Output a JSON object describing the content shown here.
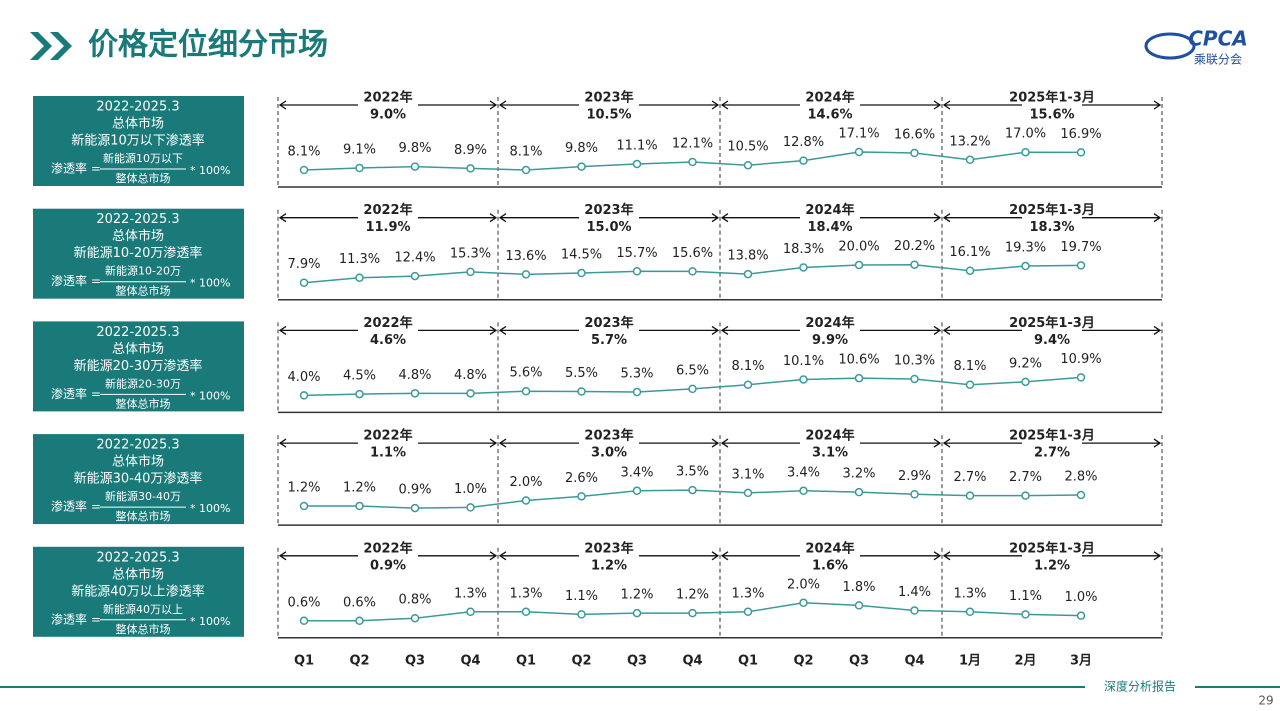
{
  "header": {
    "title": "价格定位细分市场",
    "logo": "CPCA",
    "logo_sub": "乘联分会"
  },
  "footer": {
    "report": "深度分析报告",
    "page": "29"
  },
  "chart_data": [
    {
      "type": "line",
      "period": "2022-2025.3",
      "market": "总体市场",
      "subtitle": "新能源10万以下渗透率",
      "formula": {
        "lhs": "渗透率 =",
        "numerator": "新能源10万以下",
        "denominator": "整体总市场",
        "factor": "* 100%"
      },
      "summaries": [
        {
          "label": "2022年",
          "text": "9.0%"
        },
        {
          "label": "2023年",
          "text": "10.5%"
        },
        {
          "label": "2024年",
          "text": "14.6%"
        },
        {
          "label": "2025年1-3月",
          "text": "15.6%"
        }
      ],
      "values": [
        8.1,
        9.1,
        9.8,
        8.9,
        8.1,
        9.8,
        11.1,
        12.1,
        10.5,
        12.8,
        17.1,
        16.6,
        13.2,
        17.0,
        16.9
      ],
      "value_labels": [
        "8.1%",
        "9.1%",
        "9.8%",
        "8.9%",
        "8.1%",
        "9.8%",
        "11.1%",
        "12.1%",
        "10.5%",
        "12.8%",
        "17.1%",
        "16.6%",
        "13.2%",
        "17.0%",
        "16.9%"
      ],
      "color": "#3a9a9a"
    },
    {
      "type": "line",
      "period": "2022-2025.3",
      "market": "总体市场",
      "subtitle": "新能源10-20万渗透率",
      "formula": {
        "lhs": "渗透率 =",
        "numerator": "新能源10-20万",
        "denominator": "整体总市场",
        "factor": "* 100%"
      },
      "summaries": [
        {
          "label": "2022年",
          "text": "11.9%"
        },
        {
          "label": "2023年",
          "text": "15.0%"
        },
        {
          "label": "2024年",
          "text": "18.4%"
        },
        {
          "label": "2025年1-3月",
          "text": "18.3%"
        }
      ],
      "values": [
        7.9,
        11.3,
        12.4,
        15.3,
        13.6,
        14.5,
        15.7,
        15.6,
        13.8,
        18.3,
        20.0,
        20.2,
        16.1,
        19.3,
        19.7
      ],
      "value_labels": [
        "7.9%",
        "11.3%",
        "12.4%",
        "15.3%",
        "13.6%",
        "14.5%",
        "15.7%",
        "15.6%",
        "13.8%",
        "18.3%",
        "20.0%",
        "20.2%",
        "16.1%",
        "19.3%",
        "19.7%"
      ],
      "color": "#3a9a9a"
    },
    {
      "type": "line",
      "period": "2022-2025.3",
      "market": "总体市场",
      "subtitle": "新能源20-30万渗透率",
      "formula": {
        "lhs": "渗透率 =",
        "numerator": "新能源20-30万",
        "denominator": "整体总市场",
        "factor": "* 100%"
      },
      "summaries": [
        {
          "label": "2022年",
          "text": "4.6%"
        },
        {
          "label": "2023年",
          "text": "5.7%"
        },
        {
          "label": "2024年",
          "text": "9.9%"
        },
        {
          "label": "2025年1-3月",
          "text": "9.4%"
        }
      ],
      "values": [
        4.0,
        4.5,
        4.8,
        4.8,
        5.6,
        5.5,
        5.3,
        6.5,
        8.1,
        10.1,
        10.6,
        10.3,
        8.1,
        9.2,
        10.9
      ],
      "value_labels": [
        "4.0%",
        "4.5%",
        "4.8%",
        "4.8%",
        "5.6%",
        "5.5%",
        "5.3%",
        "6.5%",
        "8.1%",
        "10.1%",
        "10.6%",
        "10.3%",
        "8.1%",
        "9.2%",
        "10.9%"
      ],
      "color": "#3a9a9a"
    },
    {
      "type": "line",
      "period": "2022-2025.3",
      "market": "总体市场",
      "subtitle": "新能源30-40万渗透率",
      "formula": {
        "lhs": "渗透率 =",
        "numerator": "新能源30-40万",
        "denominator": "整体总市场",
        "factor": "* 100%"
      },
      "summaries": [
        {
          "label": "2022年",
          "text": "1.1%"
        },
        {
          "label": "2023年",
          "text": "3.0%"
        },
        {
          "label": "2024年",
          "text": "3.1%"
        },
        {
          "label": "2025年1-3月",
          "text": "2.7%"
        }
      ],
      "values": [
        1.2,
        1.2,
        0.9,
        1.0,
        2.0,
        2.6,
        3.4,
        3.5,
        3.1,
        3.4,
        3.2,
        2.9,
        2.7,
        2.7,
        2.8
      ],
      "value_labels": [
        "1.2%",
        "1.2%",
        "0.9%",
        "1.0%",
        "2.0%",
        "2.6%",
        "3.4%",
        "3.5%",
        "3.1%",
        "3.4%",
        "3.2%",
        "2.9%",
        "2.7%",
        "2.7%",
        "2.8%"
      ],
      "color": "#3a9a9a"
    },
    {
      "type": "line",
      "period": "2022-2025.3",
      "market": "总体市场",
      "subtitle": "新能源40万以上渗透率",
      "formula": {
        "lhs": "渗透率 =",
        "numerator": "新能源40万以上",
        "denominator": "整体总市场",
        "factor": "* 100%"
      },
      "summaries": [
        {
          "label": "2022年",
          "text": "0.9%"
        },
        {
          "label": "2023年",
          "text": "1.2%"
        },
        {
          "label": "2024年",
          "text": "1.6%"
        },
        {
          "label": "2025年1-3月",
          "text": "1.2%"
        }
      ],
      "values": [
        0.6,
        0.6,
        0.8,
        1.3,
        1.3,
        1.1,
        1.2,
        1.2,
        1.3,
        2.0,
        1.8,
        1.4,
        1.3,
        1.1,
        1.0
      ],
      "value_labels": [
        "0.6%",
        "0.6%",
        "0.8%",
        "1.3%",
        "1.3%",
        "1.1%",
        "1.2%",
        "1.2%",
        "1.3%",
        "2.0%",
        "1.8%",
        "1.4%",
        "1.3%",
        "1.1%",
        "1.0%"
      ],
      "color": "#3a9a9a",
      "categories": [
        "Q1",
        "Q2",
        "Q3",
        "Q4",
        "Q1",
        "Q2",
        "Q3",
        "Q4",
        "Q1",
        "Q2",
        "Q3",
        "Q4",
        "1月",
        "2月",
        "3月"
      ]
    }
  ]
}
